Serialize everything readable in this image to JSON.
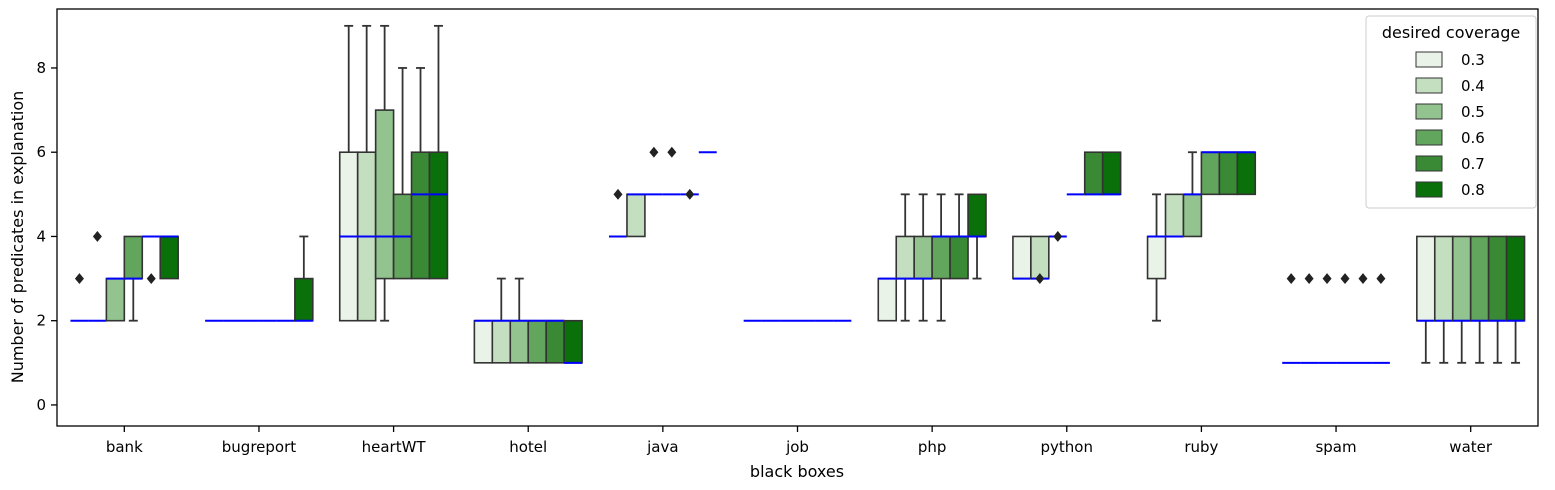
{
  "chart_data": {
    "type": "box",
    "title": "",
    "xlabel": "black boxes",
    "ylabel": "Number of predicates in explanation",
    "ylim": [
      -0.5,
      9.4
    ],
    "yticks": [
      0,
      2,
      4,
      6,
      8
    ],
    "grid": false,
    "categories": [
      "bank",
      "bugreport",
      "heartWT",
      "hotel",
      "java",
      "job",
      "php",
      "python",
      "ruby",
      "spam",
      "water"
    ],
    "legend": {
      "title": "desired coverage",
      "placement": "upper right",
      "entries": [
        "0.3",
        "0.4",
        "0.5",
        "0.6",
        "0.7",
        "0.8"
      ]
    },
    "colors": {
      "series": [
        "#eaf3e8",
        "#c3dfc0",
        "#93c38e",
        "#62a55c",
        "#3a8a35",
        "#0a700a"
      ],
      "median": "#0000ff",
      "edge": "#333333",
      "outlier": "#222222"
    },
    "series": [
      {
        "name": "0.3",
        "boxes": [
          {
            "q1": 2,
            "median": 2,
            "q3": 2,
            "whislo": 2,
            "whishi": 2,
            "fliers": [
              3
            ]
          },
          {
            "q1": 2,
            "median": 2,
            "q3": 2,
            "whislo": 2,
            "whishi": 2,
            "fliers": []
          },
          {
            "q1": 2,
            "median": 4,
            "q3": 6,
            "whislo": 2,
            "whishi": 9,
            "fliers": []
          },
          {
            "q1": 1,
            "median": 2,
            "q3": 2,
            "whislo": 1,
            "whishi": 2,
            "fliers": []
          },
          {
            "q1": 4,
            "median": 4,
            "q3": 4,
            "whislo": 4,
            "whishi": 4,
            "fliers": [
              5
            ]
          },
          {
            "q1": 2,
            "median": 2,
            "q3": 2,
            "whislo": 2,
            "whishi": 2,
            "fliers": []
          },
          {
            "q1": 2,
            "median": 3,
            "q3": 3,
            "whislo": 2,
            "whishi": 3,
            "fliers": []
          },
          {
            "q1": 3,
            "median": 3,
            "q3": 4,
            "whislo": 3,
            "whishi": 4,
            "fliers": []
          },
          {
            "q1": 3,
            "median": 4,
            "q3": 4,
            "whislo": 2,
            "whishi": 5,
            "fliers": []
          },
          {
            "q1": 1,
            "median": 1,
            "q3": 1,
            "whislo": 1,
            "whishi": 1,
            "fliers": [
              3
            ]
          },
          {
            "q1": 2,
            "median": 2,
            "q3": 4,
            "whislo": 1,
            "whishi": 4,
            "fliers": []
          }
        ]
      },
      {
        "name": "0.4",
        "boxes": [
          {
            "q1": 2,
            "median": 2,
            "q3": 2,
            "whislo": 2,
            "whishi": 2,
            "fliers": [
              4
            ]
          },
          {
            "q1": 2,
            "median": 2,
            "q3": 2,
            "whislo": 2,
            "whishi": 2,
            "fliers": []
          },
          {
            "q1": 2,
            "median": 4,
            "q3": 6,
            "whislo": 2,
            "whishi": 9,
            "fliers": []
          },
          {
            "q1": 1,
            "median": 2,
            "q3": 2,
            "whislo": 1,
            "whishi": 3,
            "fliers": []
          },
          {
            "q1": 4,
            "median": 5,
            "q3": 5,
            "whislo": 4,
            "whishi": 5,
            "fliers": []
          },
          {
            "q1": 2,
            "median": 2,
            "q3": 2,
            "whislo": 2,
            "whishi": 2,
            "fliers": []
          },
          {
            "q1": 3,
            "median": 3,
            "q3": 4,
            "whislo": 2,
            "whishi": 5,
            "fliers": []
          },
          {
            "q1": 3,
            "median": 3,
            "q3": 4,
            "whislo": 3,
            "whishi": 4,
            "fliers": [
              3
            ]
          },
          {
            "q1": 4,
            "median": 4,
            "q3": 5,
            "whislo": 4,
            "whishi": 5,
            "fliers": []
          },
          {
            "q1": 1,
            "median": 1,
            "q3": 1,
            "whislo": 1,
            "whishi": 1,
            "fliers": [
              3
            ]
          },
          {
            "q1": 2,
            "median": 2,
            "q3": 4,
            "whislo": 1,
            "whishi": 4,
            "fliers": []
          }
        ]
      },
      {
        "name": "0.5",
        "boxes": [
          {
            "q1": 2,
            "median": 3,
            "q3": 3,
            "whislo": 2,
            "whishi": 3,
            "fliers": []
          },
          {
            "q1": 2,
            "median": 2,
            "q3": 2,
            "whislo": 2,
            "whishi": 2,
            "fliers": []
          },
          {
            "q1": 3,
            "median": 4,
            "q3": 7,
            "whislo": 2,
            "whishi": 9,
            "fliers": []
          },
          {
            "q1": 1,
            "median": 2,
            "q3": 2,
            "whislo": 1,
            "whishi": 3,
            "fliers": []
          },
          {
            "q1": 5,
            "median": 5,
            "q3": 5,
            "whislo": 5,
            "whishi": 5,
            "fliers": [
              6
            ]
          },
          {
            "q1": 2,
            "median": 2,
            "q3": 2,
            "whislo": 2,
            "whishi": 2,
            "fliers": []
          },
          {
            "q1": 3,
            "median": 3,
            "q3": 4,
            "whislo": 2,
            "whishi": 5,
            "fliers": []
          },
          {
            "q1": 4,
            "median": 4,
            "q3": 4,
            "whislo": 4,
            "whishi": 4,
            "fliers": [
              4
            ]
          },
          {
            "q1": 4,
            "median": 5,
            "q3": 5,
            "whislo": 4,
            "whishi": 6,
            "fliers": []
          },
          {
            "q1": 1,
            "median": 1,
            "q3": 1,
            "whislo": 1,
            "whishi": 1,
            "fliers": [
              3
            ]
          },
          {
            "q1": 2,
            "median": 2,
            "q3": 4,
            "whislo": 1,
            "whishi": 4,
            "fliers": []
          }
        ]
      },
      {
        "name": "0.6",
        "boxes": [
          {
            "q1": 3,
            "median": 3,
            "q3": 4,
            "whislo": 2,
            "whishi": 4,
            "fliers": []
          },
          {
            "q1": 2,
            "median": 2,
            "q3": 2,
            "whislo": 2,
            "whishi": 2,
            "fliers": []
          },
          {
            "q1": 3,
            "median": 4,
            "q3": 5,
            "whislo": 3,
            "whishi": 8,
            "fliers": []
          },
          {
            "q1": 1,
            "median": 2,
            "q3": 2,
            "whislo": 1,
            "whishi": 2,
            "fliers": []
          },
          {
            "q1": 5,
            "median": 5,
            "q3": 5,
            "whislo": 5,
            "whishi": 5,
            "fliers": [
              6
            ]
          },
          {
            "q1": 2,
            "median": 2,
            "q3": 2,
            "whislo": 2,
            "whishi": 2,
            "fliers": []
          },
          {
            "q1": 3,
            "median": 4,
            "q3": 4,
            "whislo": 2,
            "whishi": 5,
            "fliers": []
          },
          {
            "q1": 5,
            "median": 5,
            "q3": 5,
            "whislo": 5,
            "whishi": 5,
            "fliers": []
          },
          {
            "q1": 5,
            "median": 6,
            "q3": 6,
            "whislo": 5,
            "whishi": 6,
            "fliers": []
          },
          {
            "q1": 1,
            "median": 1,
            "q3": 1,
            "whislo": 1,
            "whishi": 1,
            "fliers": [
              3
            ]
          },
          {
            "q1": 2,
            "median": 2,
            "q3": 4,
            "whislo": 1,
            "whishi": 4,
            "fliers": []
          }
        ]
      },
      {
        "name": "0.7",
        "boxes": [
          {
            "q1": 4,
            "median": 4,
            "q3": 4,
            "whislo": 4,
            "whishi": 4,
            "fliers": [
              3
            ]
          },
          {
            "q1": 2,
            "median": 2,
            "q3": 2,
            "whislo": 2,
            "whishi": 2,
            "fliers": []
          },
          {
            "q1": 3,
            "median": 5,
            "q3": 6,
            "whislo": 3,
            "whishi": 8,
            "fliers": []
          },
          {
            "q1": 1,
            "median": 2,
            "q3": 2,
            "whislo": 1,
            "whishi": 2,
            "fliers": []
          },
          {
            "q1": 5,
            "median": 5,
            "q3": 5,
            "whislo": 5,
            "whishi": 5,
            "fliers": [
              5
            ]
          },
          {
            "q1": 2,
            "median": 2,
            "q3": 2,
            "whislo": 2,
            "whishi": 2,
            "fliers": []
          },
          {
            "q1": 3,
            "median": 4,
            "q3": 4,
            "whislo": 3,
            "whishi": 5,
            "fliers": []
          },
          {
            "q1": 5,
            "median": 5,
            "q3": 6,
            "whislo": 5,
            "whishi": 6,
            "fliers": []
          },
          {
            "q1": 5,
            "median": 6,
            "q3": 6,
            "whislo": 5,
            "whishi": 6,
            "fliers": []
          },
          {
            "q1": 1,
            "median": 1,
            "q3": 1,
            "whislo": 1,
            "whishi": 1,
            "fliers": [
              3
            ]
          },
          {
            "q1": 2,
            "median": 2,
            "q3": 4,
            "whislo": 1,
            "whishi": 4,
            "fliers": []
          }
        ]
      },
      {
        "name": "0.8",
        "boxes": [
          {
            "q1": 3,
            "median": 4,
            "q3": 4,
            "whislo": 3,
            "whishi": 4,
            "fliers": []
          },
          {
            "q1": 2,
            "median": 2,
            "q3": 3,
            "whislo": 2,
            "whishi": 4,
            "fliers": []
          },
          {
            "q1": 3,
            "median": 5,
            "q3": 6,
            "whislo": 3,
            "whishi": 9,
            "fliers": []
          },
          {
            "q1": 1,
            "median": 1,
            "q3": 2,
            "whislo": 1,
            "whishi": 2,
            "fliers": []
          },
          {
            "q1": 6,
            "median": 6,
            "q3": 6,
            "whislo": 6,
            "whishi": 6,
            "fliers": []
          },
          {
            "q1": 2,
            "median": 2,
            "q3": 2,
            "whislo": 2,
            "whishi": 2,
            "fliers": []
          },
          {
            "q1": 4,
            "median": 4,
            "q3": 5,
            "whislo": 3,
            "whishi": 5,
            "fliers": []
          },
          {
            "q1": 5,
            "median": 5,
            "q3": 6,
            "whislo": 5,
            "whishi": 6,
            "fliers": []
          },
          {
            "q1": 5,
            "median": 6,
            "q3": 6,
            "whislo": 5,
            "whishi": 6,
            "fliers": []
          },
          {
            "q1": 1,
            "median": 1,
            "q3": 1,
            "whislo": 1,
            "whishi": 1,
            "fliers": [
              3
            ]
          },
          {
            "q1": 2,
            "median": 2,
            "q3": 4,
            "whislo": 1,
            "whishi": 4,
            "fliers": []
          }
        ]
      }
    ]
  }
}
